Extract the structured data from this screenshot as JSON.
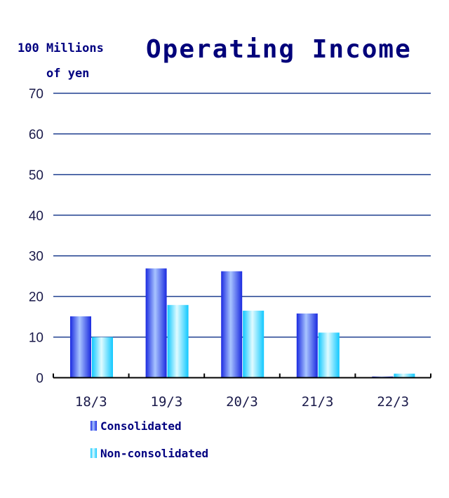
{
  "chart_data": {
    "type": "bar",
    "title": "Operating Income",
    "ylabel_line1": "100 Millions",
    "ylabel_line2": "of yen",
    "categories": [
      "18/3",
      "19/3",
      "20/3",
      "21/3",
      "22/3"
    ],
    "series": [
      {
        "name": "Consolidated",
        "values": [
          15.1,
          26.9,
          26.2,
          15.8,
          0.3
        ],
        "color": "#2a3cf0"
      },
      {
        "name": "Non-consolidated",
        "values": [
          10.0,
          17.9,
          16.5,
          11.1,
          1.0
        ],
        "color": "#22ccff"
      }
    ],
    "ylim": [
      0,
      70
    ],
    "yticks": [
      "0",
      "10",
      "20",
      "30",
      "40",
      "50",
      "60",
      "70"
    ],
    "grid": true,
    "gridline_color": "#1f3f8f",
    "legend_placement": "bottom-left"
  }
}
